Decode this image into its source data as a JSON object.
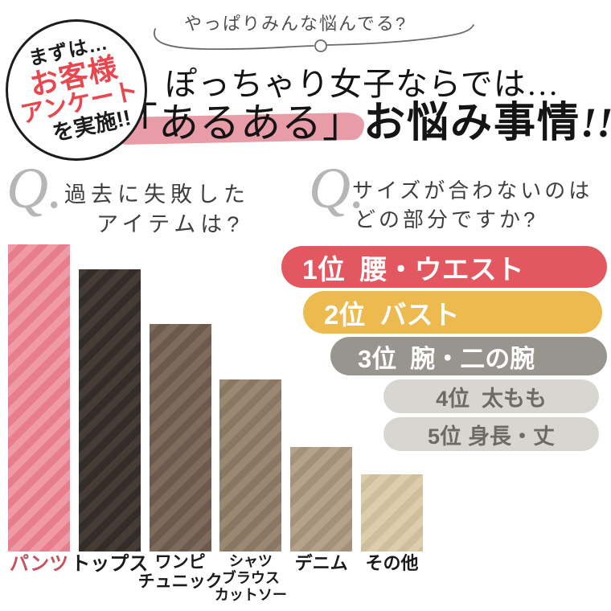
{
  "badge": {
    "line1": "まずは…",
    "line2": "お客様",
    "line3": "アンケート",
    "line4": "を実施!!"
  },
  "note": {
    "text": "やっぱりみんな悩んでる?"
  },
  "title": {
    "line1": "ぽっちゃり女子ならでは…",
    "line2_highlight": "「あるある」",
    "line2_rest": "お悩み事情",
    "line2_bang": "!!"
  },
  "question_left": {
    "q": "Q.",
    "line1": "過去に失敗した",
    "line2": "アイテムは?"
  },
  "question_right": {
    "q": "Q.",
    "line1": "サイズが合わないのは",
    "line2": "どの部分ですか?"
  },
  "ranking": {
    "items": [
      {
        "rank": "1位",
        "label": "腰・ウエスト",
        "bg": "#e25760",
        "text_color": "#ffffff"
      },
      {
        "rank": "2位",
        "label": "バスト",
        "bg": "#ecba4e",
        "text_color": "#ffffff"
      },
      {
        "rank": "3位",
        "label": "腕・二の腕",
        "bg": "#98948e",
        "text_color": "#ffffff"
      },
      {
        "rank": "4位",
        "label": "太もも",
        "bg": "#d8d6d0",
        "text_color": "#6c6b63"
      },
      {
        "rank": "5位",
        "label": "身長・丈",
        "bg": "#d8d6d0",
        "text_color": "#6c6b63"
      }
    ]
  },
  "chart_data": {
    "type": "bar",
    "title": "過去に失敗したアイテムは?",
    "categories": [
      "パンツ",
      "トップス",
      "ワンピ チュニック",
      "シャツ ブラウス カットソー",
      "デニム",
      "その他"
    ],
    "values": [
      100,
      92,
      74,
      56,
      34,
      25
    ],
    "value_note": "relative bar heights estimated from pixels; no numeric axis shown",
    "ylim": [
      0,
      100
    ],
    "xlabel": "",
    "ylabel": "",
    "grid": false,
    "legend": false,
    "bar_colors": [
      {
        "base": "#ef9aa4",
        "stripe": "#e77e8e"
      },
      {
        "base": "#453c36",
        "stripe": "#332c28"
      },
      {
        "base": "#7d6b5c",
        "stripe": "#6b5a4d"
      },
      {
        "base": "#9b8872",
        "stripe": "#897663"
      },
      {
        "base": "#b5a28a",
        "stripe": "#a5917b"
      },
      {
        "base": "#ddcdac",
        "stripe": "#cfbe9c"
      }
    ],
    "label_lines": [
      [
        "パンツ"
      ],
      [
        "トップス"
      ],
      [
        "ワンピ",
        "チュニック"
      ],
      [
        "シャツ",
        "ブラウス",
        "カットソー"
      ],
      [
        "デニム"
      ],
      [
        "その他"
      ]
    ],
    "label_colors": [
      "#c5525d",
      "#1a1a1a",
      "#1a1a1a",
      "#1a1a1a",
      "#1a1a1a",
      "#1a1a1a"
    ]
  },
  "colors": {
    "badge_red": "#e8474f",
    "highlight_pink": "#e694a0",
    "curve_gray": "#6a6a6a"
  }
}
